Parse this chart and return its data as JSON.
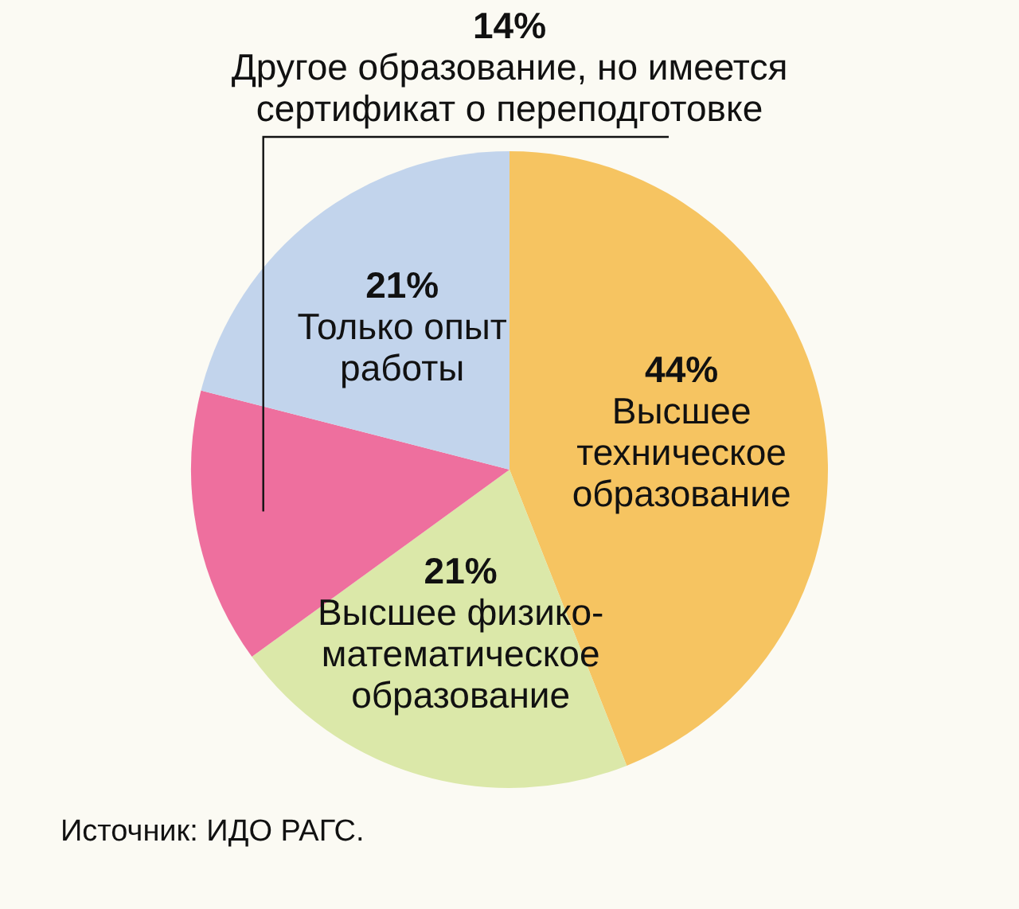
{
  "chart_data": {
    "type": "pie",
    "categories": [
      "Высшее техническое образование",
      "Высшее физико-математическое образование",
      "Другое образование, но имеется сертификат о переподготовке",
      "Только опыт работы"
    ],
    "values": [
      44,
      21,
      14,
      21
    ],
    "value_labels": [
      "44%",
      "21%",
      "14%",
      "21%"
    ],
    "colors": [
      "#f6c461",
      "#dbe8a9",
      "#ee6f9e",
      "#c2d4ec"
    ],
    "annotations": [
      "Источник: ИДО РАГС."
    ],
    "legend": false
  }
}
